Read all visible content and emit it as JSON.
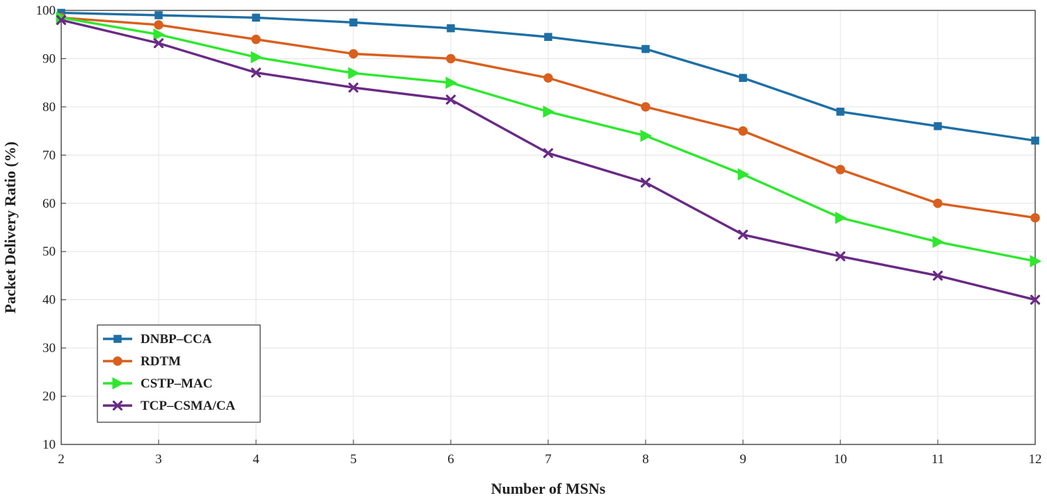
{
  "chart_data": {
    "type": "line",
    "title": "",
    "xlabel": "Number of MSNs",
    "ylabel": "Packet Delivery Ratio (%)",
    "x": [
      2,
      3,
      4,
      5,
      6,
      7,
      8,
      9,
      10,
      11,
      12
    ],
    "xlim": [
      2,
      12
    ],
    "ylim": [
      10,
      100
    ],
    "yticks": [
      10,
      20,
      30,
      40,
      50,
      60,
      70,
      80,
      90,
      100
    ],
    "grid": true,
    "legend_position": "lower-left",
    "series": [
      {
        "name": "DNBP–CCA",
        "color": "#1f6fa5",
        "marker": "square",
        "values": [
          99.5,
          99,
          98.5,
          97.5,
          96.3,
          94.5,
          92,
          86,
          79,
          76,
          73
        ]
      },
      {
        "name": "RDTM",
        "color": "#d95f1e",
        "marker": "circle",
        "values": [
          98.5,
          97,
          94,
          91,
          90,
          86,
          80,
          75,
          67,
          60,
          57
        ]
      },
      {
        "name": "CSTP–MAC",
        "color": "#2ee82e",
        "marker": "triangle-right",
        "values": [
          98.5,
          95,
          90.3,
          87,
          85,
          79,
          74,
          66,
          57,
          52,
          48
        ]
      },
      {
        "name": "TCP–CSMA/CA",
        "color": "#6a2a85",
        "marker": "x",
        "values": [
          98,
          93.2,
          87.1,
          84,
          81.5,
          70.4,
          64.3,
          53.5,
          49,
          45,
          40
        ]
      }
    ]
  }
}
